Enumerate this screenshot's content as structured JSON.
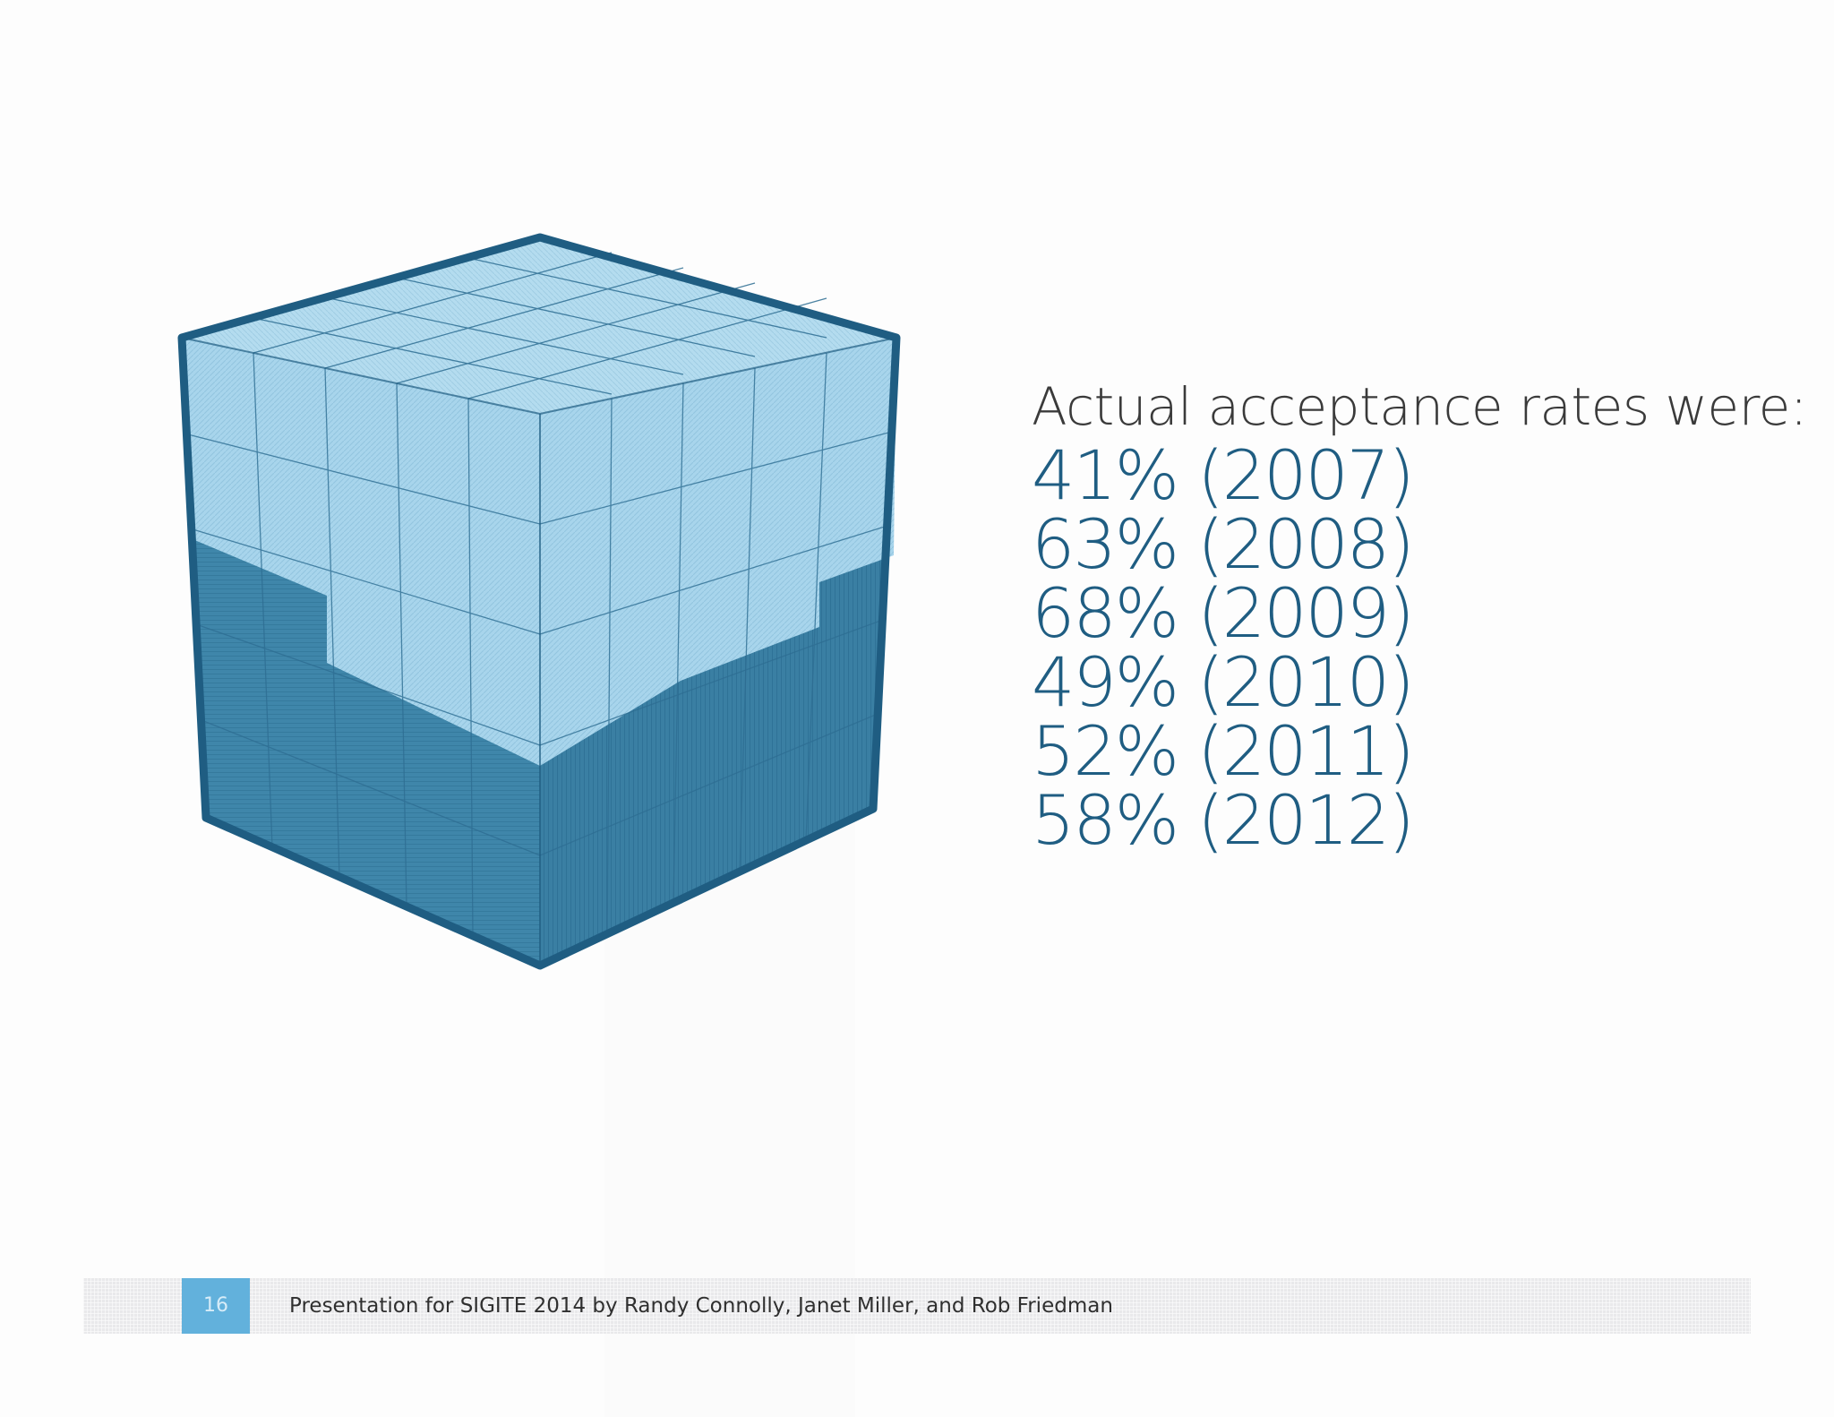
{
  "slide": {
    "heading": "Actual acceptance rates were:",
    "rates": [
      {
        "text": "41% (2007)",
        "percent": 41,
        "year": 2007
      },
      {
        "text": "63% (2008)",
        "percent": 63,
        "year": 2008
      },
      {
        "text": "68% (2009)",
        "percent": 68,
        "year": 2009
      },
      {
        "text": "49% (2010)",
        "percent": 49,
        "year": 2010
      },
      {
        "text": "52% (2011)",
        "percent": 52,
        "year": 2011
      },
      {
        "text": "58% (2012)",
        "percent": 58,
        "year": 2012
      }
    ]
  },
  "footer": {
    "page_number": "16",
    "text": "Presentation for SIGITE 2014 by Randy Connolly, Janet Miller, and Rob Friedman"
  },
  "colors": {
    "cube_light": "#a8d5ec",
    "cube_dark": "#3f86aa",
    "cube_outline": "#1f5d82",
    "rate_text": "#1f5d82",
    "heading_text": "#3a3a3a",
    "page_badge": "#62b1dc",
    "footer_bar": "#e9e9eb"
  },
  "icons": {
    "cube": "cube-of-blocks-icon"
  }
}
